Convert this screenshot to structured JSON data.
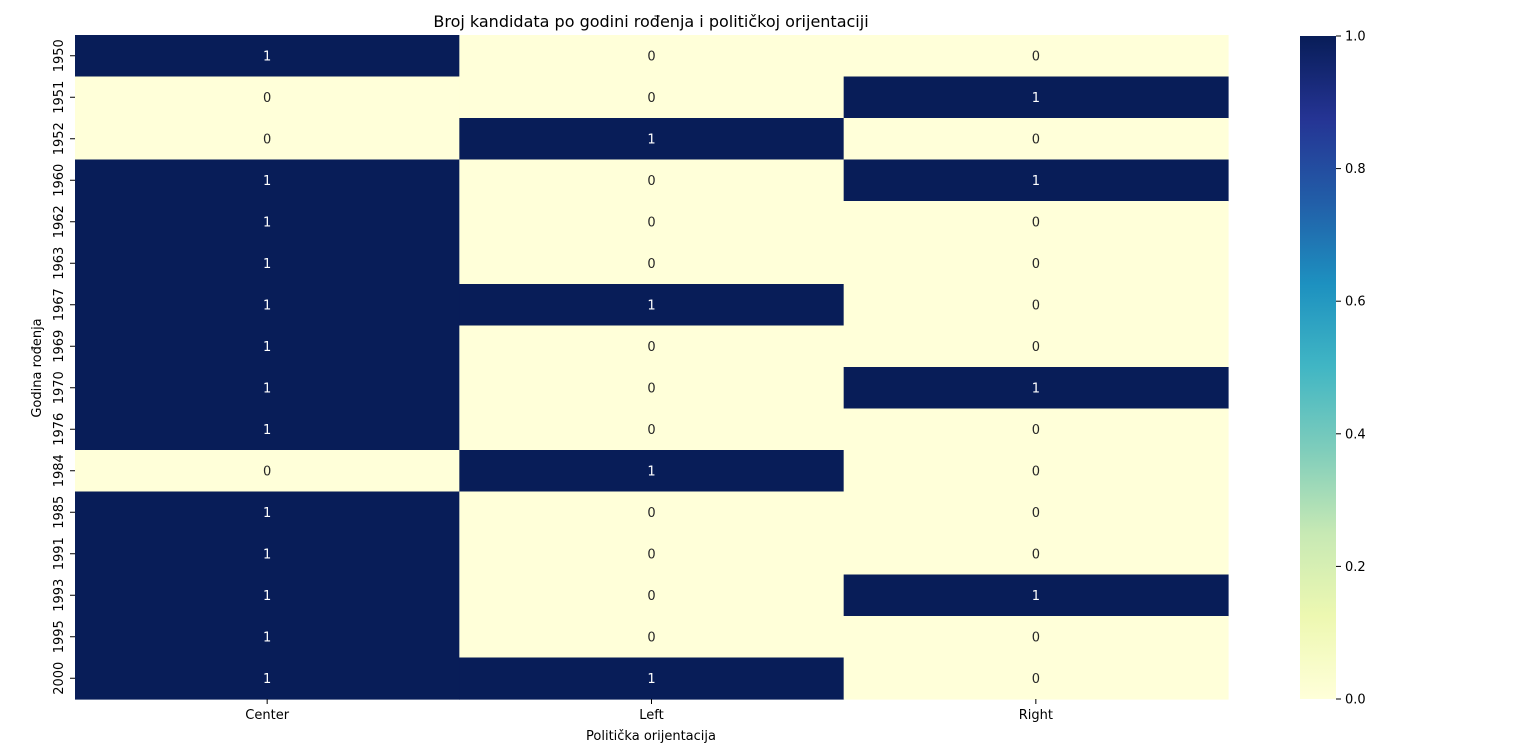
{
  "chart_data": {
    "type": "heatmap",
    "title": "Broj kandidata po godini rođenja i političkoj orijentaciji",
    "xlabel": "Politička orijentacija",
    "ylabel": "Godina rođenja",
    "x_categories": [
      "Center",
      "Left",
      "Right"
    ],
    "y_categories": [
      "1950",
      "1951",
      "1952",
      "1960",
      "1962",
      "1963",
      "1967",
      "1969",
      "1970",
      "1976",
      "1984",
      "1985",
      "1991",
      "1993",
      "1995",
      "2000"
    ],
    "values": [
      [
        1,
        0,
        0
      ],
      [
        0,
        0,
        1
      ],
      [
        0,
        1,
        0
      ],
      [
        1,
        0,
        1
      ],
      [
        1,
        0,
        0
      ],
      [
        1,
        0,
        0
      ],
      [
        1,
        1,
        0
      ],
      [
        1,
        0,
        0
      ],
      [
        1,
        0,
        1
      ],
      [
        1,
        0,
        0
      ],
      [
        0,
        1,
        0
      ],
      [
        1,
        0,
        0
      ],
      [
        1,
        0,
        0
      ],
      [
        1,
        0,
        1
      ],
      [
        1,
        0,
        0
      ],
      [
        1,
        1,
        0
      ]
    ],
    "colorbar": {
      "range": [
        0.0,
        1.0
      ],
      "ticks": [
        "0.0",
        "0.2",
        "0.4",
        "0.6",
        "0.8",
        "1.0"
      ],
      "colormap": "YlGnBu",
      "low_color": "#ffffd9",
      "high_color": "#081d58"
    },
    "annotations": true,
    "grid": false
  }
}
